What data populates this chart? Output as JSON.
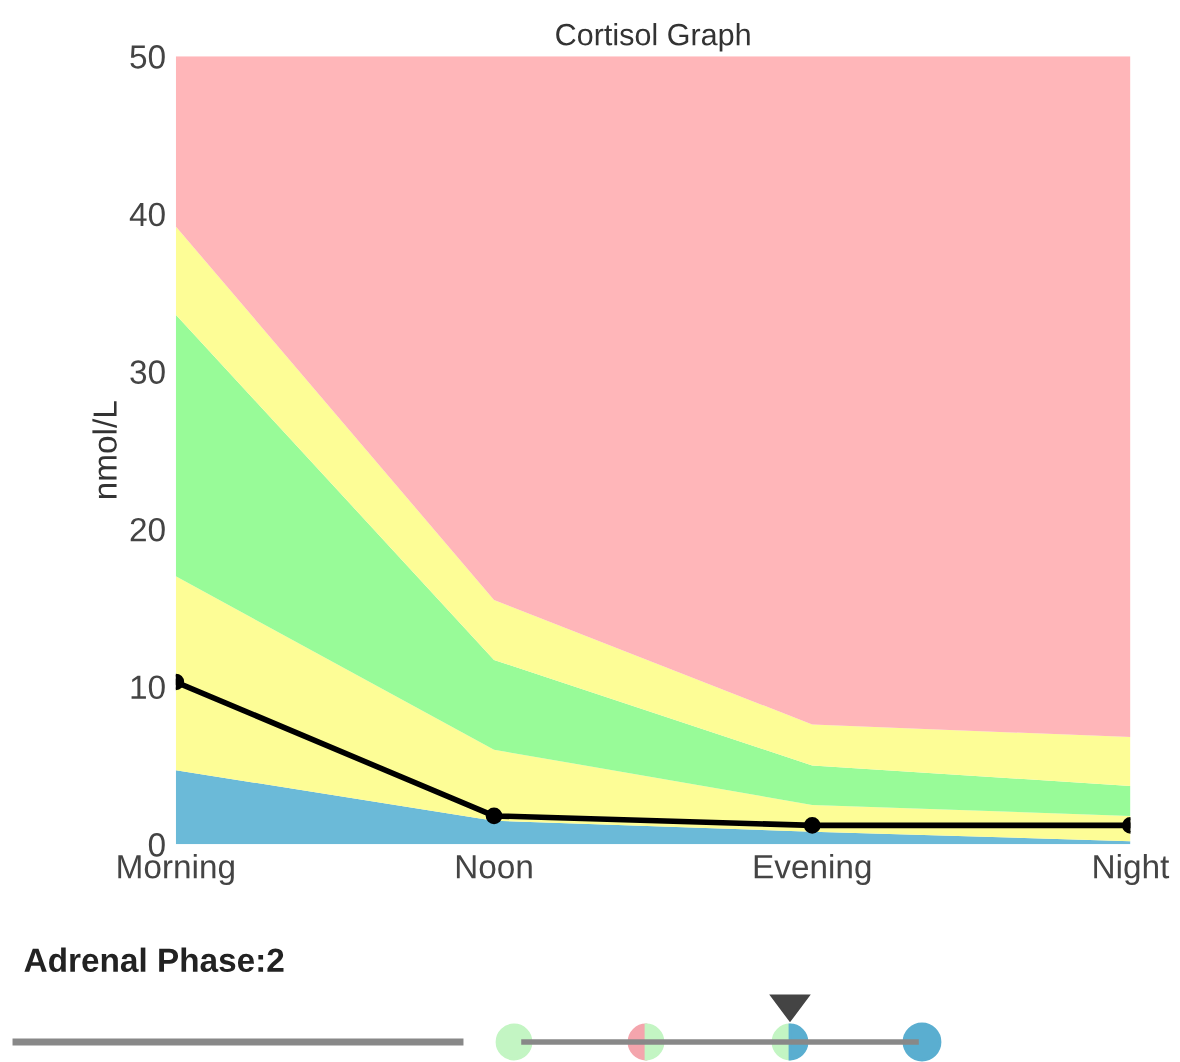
{
  "chart_data": {
    "type": "area",
    "title": "Cortisol Graph",
    "ylabel": "nmol/L",
    "categories": [
      "Morning",
      "Noon",
      "Evening",
      "Night"
    ],
    "stacked": true,
    "series": [
      {
        "color": "#6bbad8",
        "values": [
          4.7,
          1.5,
          0.8,
          0.2
        ]
      },
      {
        "color": "#fdfd96",
        "values": [
          12.3,
          4.5,
          1.7,
          1.6
        ]
      },
      {
        "color": "#98fb98",
        "values": [
          16.6,
          5.7,
          2.5,
          1.9
        ]
      },
      {
        "color": "#fdfd96",
        "values": [
          5.6,
          3.8,
          2.6,
          3.1
        ]
      },
      {
        "color": "#ffb6b9",
        "values": [
          10.8,
          34.5,
          42.4,
          43.2
        ]
      },
      {
        "type": "line",
        "color": "#000000",
        "values": [
          10.3,
          1.8,
          1.2,
          1.2
        ],
        "marker": "circle"
      }
    ],
    "ylim": [
      0,
      50
    ],
    "yticks": [
      0,
      10,
      20,
      30,
      40,
      50
    ],
    "grid": false,
    "legend": false,
    "annotations": [
      "Adrenal Phase:2"
    ]
  }
}
